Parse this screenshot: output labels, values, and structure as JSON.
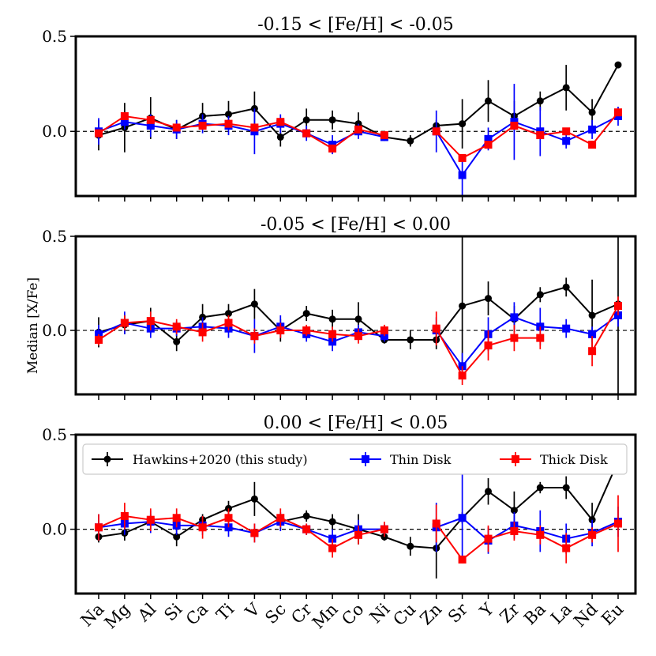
{
  "chart_data": {
    "type": "line",
    "ylabel": "Median [X/Fe]",
    "elements": [
      "Na",
      "Mg",
      "Al",
      "Si",
      "Ca",
      "Ti",
      "V",
      "Sc",
      "Cr",
      "Mn",
      "Co",
      "Ni",
      "Cu",
      "Zn",
      "Sr",
      "Y",
      "Zr",
      "Ba",
      "La",
      "Nd",
      "Eu"
    ],
    "ylim": [
      -0.34,
      0.5
    ],
    "yticks": [
      0.0,
      0.5
    ],
    "ytick_labels": [
      "0.0",
      "0.5"
    ],
    "legend": {
      "placement": "top",
      "entries": [
        "Hawkins+2020 (this study)",
        "Thin Disk",
        "Thick Disk"
      ]
    },
    "series_style": [
      {
        "name": "Hawkins+2020 (this study)",
        "color": "#000000",
        "marker": "circle"
      },
      {
        "name": "Thin Disk",
        "color": "#0000ff",
        "marker": "square"
      },
      {
        "name": "Thick Disk",
        "color": "#ff0000",
        "marker": "square"
      }
    ],
    "panels": [
      {
        "title": "-0.15 < [Fe/H] < -0.05",
        "series": [
          {
            "name": "Hawkins+2020 (this study)",
            "values": [
              -0.02,
              0.02,
              0.07,
              0.01,
              0.08,
              0.09,
              0.12,
              -0.03,
              0.06,
              0.06,
              0.04,
              -0.03,
              -0.05,
              0.03,
              0.04,
              0.16,
              0.08,
              0.16,
              0.23,
              0.1,
              0.35
            ],
            "errors": [
              0.08,
              0.13,
              0.11,
              0.05,
              0.07,
              0.07,
              0.09,
              0.05,
              0.06,
              0.05,
              0.06,
              0.02,
              0.03,
              0.03,
              0.13,
              0.11,
              0.08,
              0.05,
              0.12,
              0.07,
              0.0
            ]
          },
          {
            "name": "Thin Disk",
            "values": [
              0.0,
              0.05,
              0.03,
              0.01,
              0.04,
              0.03,
              0.0,
              0.04,
              -0.01,
              -0.07,
              0.0,
              -0.03,
              null,
              0.0,
              -0.23,
              -0.04,
              0.05,
              0.0,
              -0.05,
              0.01,
              0.08
            ],
            "errors": [
              0.07,
              0.04,
              0.06,
              0.05,
              0.05,
              0.05,
              0.12,
              0.05,
              0.04,
              0.05,
              0.04,
              0.02,
              null,
              0.11,
              0.11,
              0.06,
              0.2,
              0.13,
              0.04,
              0.05,
              0.05
            ]
          },
          {
            "name": "Thick Disk",
            "values": [
              -0.01,
              0.08,
              0.06,
              0.02,
              0.03,
              0.04,
              0.02,
              0.05,
              -0.01,
              -0.09,
              0.01,
              -0.02,
              null,
              0.0,
              -0.14,
              -0.07,
              0.03,
              -0.02,
              0.0,
              -0.07,
              0.1
            ]
          }
        ]
      },
      {
        "title": "-0.05 < [Fe/H] < 0.00",
        "series": [
          {
            "name": "Hawkins+2020 (this study)",
            "values": [
              -0.01,
              0.03,
              0.05,
              -0.06,
              0.07,
              0.09,
              0.14,
              0.0,
              0.09,
              0.06,
              0.06,
              -0.05,
              -0.05,
              -0.05,
              0.13,
              0.17,
              0.06,
              0.19,
              0.23,
              0.08,
              0.14
            ],
            "errors": [
              0.08,
              0.05,
              0.07,
              0.05,
              0.07,
              0.05,
              0.08,
              0.06,
              0.04,
              0.05,
              0.09,
              0.02,
              0.05,
              0.05,
              0.37,
              0.09,
              0.07,
              0.04,
              0.05,
              0.19,
              0.5
            ]
          },
          {
            "name": "Thin Disk",
            "values": [
              -0.02,
              0.04,
              0.01,
              0.01,
              0.02,
              0.01,
              -0.03,
              0.02,
              -0.02,
              -0.06,
              -0.01,
              -0.03,
              null,
              0.0,
              -0.19,
              -0.02,
              0.07,
              0.02,
              0.01,
              -0.02,
              0.08
            ],
            "errors": [
              0.05,
              0.06,
              0.05,
              0.04,
              0.05,
              0.05,
              0.09,
              0.06,
              0.04,
              0.05,
              0.04,
              0.03,
              null,
              0.07,
              0.07,
              0.09,
              0.08,
              0.1,
              0.05,
              0.04,
              0.06
            ]
          },
          {
            "name": "Thick Disk",
            "values": [
              -0.05,
              0.04,
              0.05,
              0.02,
              -0.01,
              0.04,
              -0.03,
              0.0,
              0.0,
              -0.02,
              -0.03,
              0.0,
              null,
              0.01,
              -0.24,
              -0.08,
              -0.04,
              -0.04,
              null,
              -0.11,
              0.13
            ],
            "errors": [
              0.03,
              0.04,
              0.05,
              0.04,
              0.05,
              0.04,
              0.04,
              0.04,
              0.03,
              0.04,
              0.04,
              0.03,
              null,
              0.09,
              0.05,
              0.08,
              0.07,
              0.06,
              null,
              0.08,
              0.05
            ]
          }
        ]
      },
      {
        "title": "0.00 < [Fe/H] < 0.05",
        "series": [
          {
            "name": "Hawkins+2020 (this study)",
            "values": [
              -0.04,
              -0.02,
              0.04,
              -0.04,
              0.05,
              0.11,
              0.16,
              0.04,
              0.07,
              0.04,
              0.0,
              -0.04,
              -0.09,
              -0.1,
              0.06,
              0.2,
              0.1,
              0.22,
              0.22,
              0.05,
              0.36
            ],
            "errors": [
              0.03,
              0.04,
              0.04,
              0.05,
              0.03,
              0.04,
              0.09,
              0.04,
              0.03,
              0.04,
              0.08,
              0.02,
              0.05,
              0.16,
              0.03,
              0.07,
              0.1,
              0.03,
              0.06,
              0.09,
              0.0
            ]
          },
          {
            "name": "Thin Disk",
            "values": [
              0.01,
              0.03,
              0.04,
              0.02,
              0.02,
              0.01,
              -0.02,
              0.04,
              0.0,
              -0.05,
              0.0,
              0.0,
              null,
              0.01,
              0.06,
              -0.06,
              0.02,
              -0.01,
              -0.05,
              -0.02,
              0.04
            ],
            "errors": [
              0.07,
              0.06,
              0.06,
              0.05,
              0.05,
              0.05,
              0.05,
              0.05,
              0.03,
              0.05,
              0.05,
              0.03,
              null,
              0.13,
              0.23,
              0.07,
              0.07,
              0.11,
              0.08,
              0.07,
              0.08
            ]
          },
          {
            "name": "Thick Disk",
            "values": [
              0.01,
              0.07,
              0.05,
              0.06,
              0.01,
              0.06,
              -0.02,
              0.06,
              0.0,
              -0.1,
              -0.03,
              0.0,
              null,
              0.03,
              -0.16,
              -0.05,
              -0.01,
              -0.03,
              -0.1,
              -0.03,
              0.03
            ],
            "errors": [
              0.07,
              0.07,
              0.06,
              0.05,
              0.06,
              0.05,
              0.05,
              0.05,
              0.03,
              0.05,
              0.05,
              0.04,
              null,
              0.1,
              0.02,
              0.07,
              0.05,
              0.05,
              0.08,
              0.04,
              0.15
            ]
          }
        ]
      }
    ]
  }
}
